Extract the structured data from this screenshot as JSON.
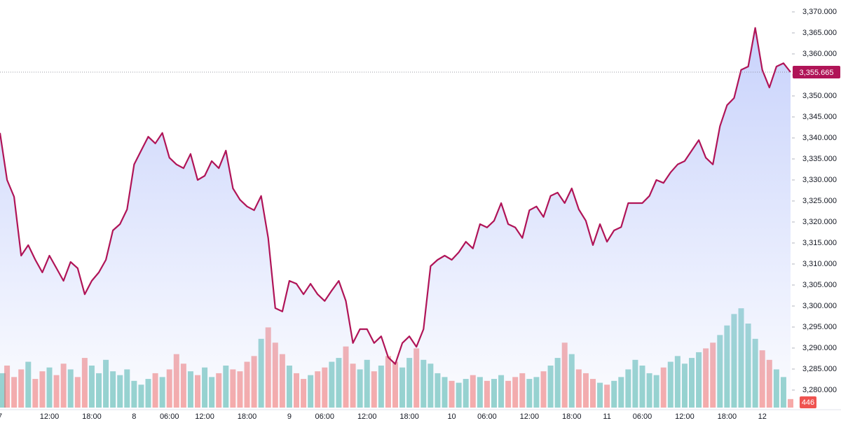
{
  "chart_data": {
    "type": "area",
    "color": "#b01457",
    "volume_up_color": "#26a69a",
    "volume_down_color": "#ef5350",
    "categories": [
      "7",
      null,
      null,
      null,
      null,
      null,
      null,
      "12:00",
      null,
      null,
      null,
      null,
      null,
      "18:00",
      null,
      null,
      null,
      null,
      null,
      "8",
      null,
      null,
      null,
      null,
      "06:00",
      null,
      null,
      null,
      null,
      "12:00",
      null,
      null,
      null,
      null,
      null,
      "18:00",
      null,
      null,
      null,
      null,
      null,
      "9",
      null,
      null,
      null,
      null,
      "06:00",
      null,
      null,
      null,
      null,
      null,
      "12:00",
      null,
      null,
      null,
      null,
      null,
      "18:00",
      null,
      null,
      null,
      null,
      null,
      "10",
      null,
      null,
      null,
      null,
      "06:00",
      null,
      null,
      null,
      null,
      null,
      "12:00",
      null,
      null,
      null,
      null,
      null,
      "18:00",
      null,
      null,
      null,
      null,
      "11",
      null,
      null,
      null,
      null,
      "06:00",
      null,
      null,
      null,
      null,
      null,
      "12:00",
      null,
      null,
      null,
      null,
      null,
      "18:00",
      null,
      null,
      null,
      null,
      "12",
      null,
      null,
      null,
      null
    ],
    "series": [
      {
        "name": "Price",
        "values": [
          3341.2,
          3330,
          3326,
          3312,
          3314.5,
          3311,
          3308,
          3312,
          3309,
          3306,
          3310.5,
          3309,
          3302.8,
          3306,
          3308,
          3311,
          3318,
          3319.5,
          3323,
          3333.7,
          3337,
          3340.3,
          3338.7,
          3341.2,
          3335.3,
          3333.7,
          3332.8,
          3336.2,
          3330,
          3331,
          3334.5,
          3332.8,
          3337,
          3328,
          3325.3,
          3323.7,
          3322.8,
          3326.2,
          3316.2,
          3299.5,
          3298.7,
          3306,
          3305.3,
          3302.8,
          3305.3,
          3302.8,
          3301.2,
          3303.7,
          3306,
          3301.2,
          3291.2,
          3294.5,
          3294.5,
          3291.2,
          3292.8,
          3287.8,
          3286.2,
          3291.2,
          3292.8,
          3290.3,
          3294.5,
          3309.5,
          3311,
          3312,
          3311,
          3312.8,
          3315.3,
          3313.7,
          3319.5,
          3318.7,
          3320.3,
          3324.5,
          3319.5,
          3318.7,
          3316.2,
          3322.8,
          3323.7,
          3321.2,
          3326.2,
          3327,
          3324.5,
          3328,
          3323,
          3320.3,
          3314.5,
          3319.5,
          3315.3,
          3318,
          3318.8,
          3324.5,
          3324.5,
          3324.5,
          3326.2,
          3330,
          3329.3,
          3331.8,
          3333.7,
          3334.5,
          3337,
          3339.5,
          3335.3,
          3333.7,
          3342.8,
          3347.8,
          3349.5,
          3356.2,
          3357,
          3366.2,
          3356.2,
          3352,
          3357,
          3357.8,
          3355.665
        ]
      },
      {
        "name": "Volume",
        "axis": "y2",
        "values": [
          1800,
          2200,
          1600,
          2000,
          2400,
          1500,
          1900,
          2100,
          1700,
          2300,
          2000,
          1600,
          2600,
          2200,
          1800,
          2500,
          1900,
          1700,
          2000,
          1400,
          1200,
          1500,
          1800,
          1600,
          2000,
          2800,
          2300,
          1900,
          1700,
          2100,
          1600,
          1800,
          2200,
          2000,
          1900,
          2400,
          2700,
          3600,
          4200,
          3400,
          2800,
          2200,
          1800,
          1500,
          1700,
          1900,
          2100,
          2400,
          2600,
          3200,
          2300,
          2000,
          2500,
          1900,
          2200,
          2700,
          2400,
          2100,
          2600,
          3100,
          2500,
          2300,
          1800,
          1600,
          1400,
          1300,
          1500,
          1700,
          1600,
          1400,
          1500,
          1700,
          1400,
          1600,
          1800,
          1500,
          1600,
          1900,
          2200,
          2600,
          3400,
          2800,
          2000,
          1800,
          1500,
          1300,
          1200,
          1400,
          1600,
          2000,
          2500,
          2200,
          1800,
          1700,
          2100,
          2400,
          2700,
          2300,
          2600,
          2900,
          3100,
          3400,
          3800,
          4300,
          4900,
          5200,
          4400,
          3600,
          3000,
          2500,
          2000,
          1600,
          446
        ]
      }
    ],
    "last_price": {
      "value": 3355.665,
      "label": "3,355.665"
    },
    "ylim": [
      3275.33,
      3372.83
    ],
    "y2lim": [
      0,
      5500
    ],
    "yticks": [
      {
        "value": 3280,
        "label": "3,280.000"
      },
      {
        "value": 3285,
        "label": "3,285.000"
      },
      {
        "value": 3290,
        "label": "3,290.000"
      },
      {
        "value": 3295,
        "label": "3,295.000"
      },
      {
        "value": 3300,
        "label": "3,300.000"
      },
      {
        "value": 3305,
        "label": "3,305.000"
      },
      {
        "value": 3310,
        "label": "3,310.000"
      },
      {
        "value": 3315,
        "label": "3,315.000"
      },
      {
        "value": 3320,
        "label": "3,320.000"
      },
      {
        "value": 3325,
        "label": "3,325.000"
      },
      {
        "value": 3330,
        "label": "3,330.000"
      },
      {
        "value": 3335,
        "label": "3,335.000"
      },
      {
        "value": 3340,
        "label": "3,340.000"
      },
      {
        "value": 3345,
        "label": "3,345.000"
      },
      {
        "value": 3350,
        "label": "3,350.000"
      },
      {
        "value": 3355,
        "label": "3,355.000"
      },
      {
        "value": 3360,
        "label": "3,360.000"
      },
      {
        "value": 3365,
        "label": "3,365.000"
      },
      {
        "value": 3370,
        "label": "3,370.000"
      }
    ]
  }
}
